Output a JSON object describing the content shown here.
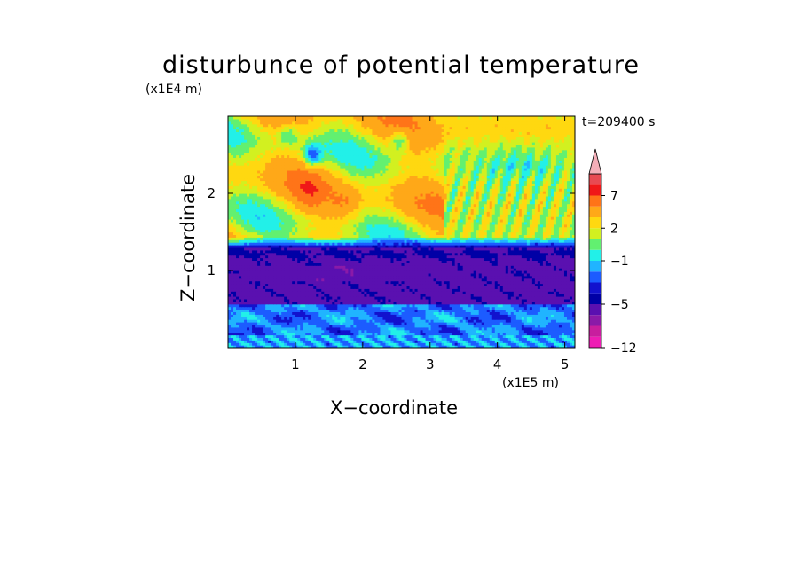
{
  "chart_data": {
    "type": "heatmap",
    "title": "disturbunce of potential temperature",
    "time_label": "t=209400 s",
    "xlabel": "X−coordinate",
    "ylabel": "Z−coordinate",
    "x_unit": "(x1E5 m)",
    "z_unit": "(x1E4 m)",
    "xlim": [
      0,
      5.15
    ],
    "zlim": [
      0,
      3.0
    ],
    "x_ticks": [
      "1",
      "2",
      "3",
      "4",
      "5"
    ],
    "z_ticks": [
      "1",
      "2"
    ],
    "colorbar": {
      "levels": [
        -12,
        -11,
        -9,
        -7,
        -5,
        -4,
        -3,
        -2,
        -1,
        0,
        1,
        2,
        3,
        5,
        7,
        9,
        11
      ],
      "labels": [
        "−12",
        "−5",
        "−1",
        "2",
        "7"
      ],
      "colors": [
        "#ee1cb4",
        "#c81e9e",
        "#8a1aa8",
        "#5a10b0",
        "#0000a6",
        "#1212ce",
        "#1c5cff",
        "#20b4ff",
        "#22f0e8",
        "#62f070",
        "#d2f020",
        "#ffd810",
        "#ffa818",
        "#ff7418",
        "#f01818",
        "#e84a52",
        "#f4aeb8"
      ],
      "extend": "max"
    }
  }
}
